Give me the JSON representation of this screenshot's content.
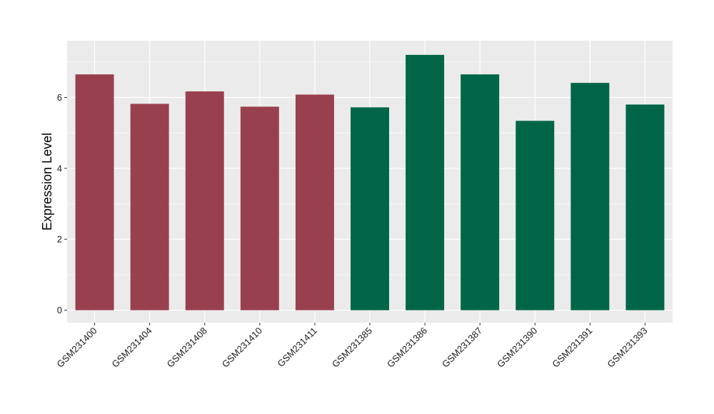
{
  "chart_data": {
    "type": "bar",
    "title": "",
    "xlabel": "",
    "ylabel": "Expression Level",
    "ylim": [
      -0.35,
      7.6
    ],
    "yticks": [
      0,
      2,
      4,
      6
    ],
    "grid": true,
    "legend": "none",
    "categories": [
      "GSM231400",
      "GSM231404",
      "GSM231408",
      "GSM231410",
      "GSM231411",
      "GSM231385",
      "GSM231386",
      "GSM231387",
      "GSM231390",
      "GSM231391",
      "GSM231393"
    ],
    "values": [
      6.65,
      5.82,
      6.17,
      5.74,
      6.08,
      5.72,
      7.2,
      6.65,
      5.34,
      6.41,
      5.8
    ],
    "bar_colors": [
      "#99404f",
      "#99404f",
      "#99404f",
      "#99404f",
      "#99404f",
      "#006647",
      "#006647",
      "#006647",
      "#006647",
      "#006647",
      "#006647"
    ],
    "panel_background": "#ebebeb",
    "grid_color": "#ffffff"
  }
}
